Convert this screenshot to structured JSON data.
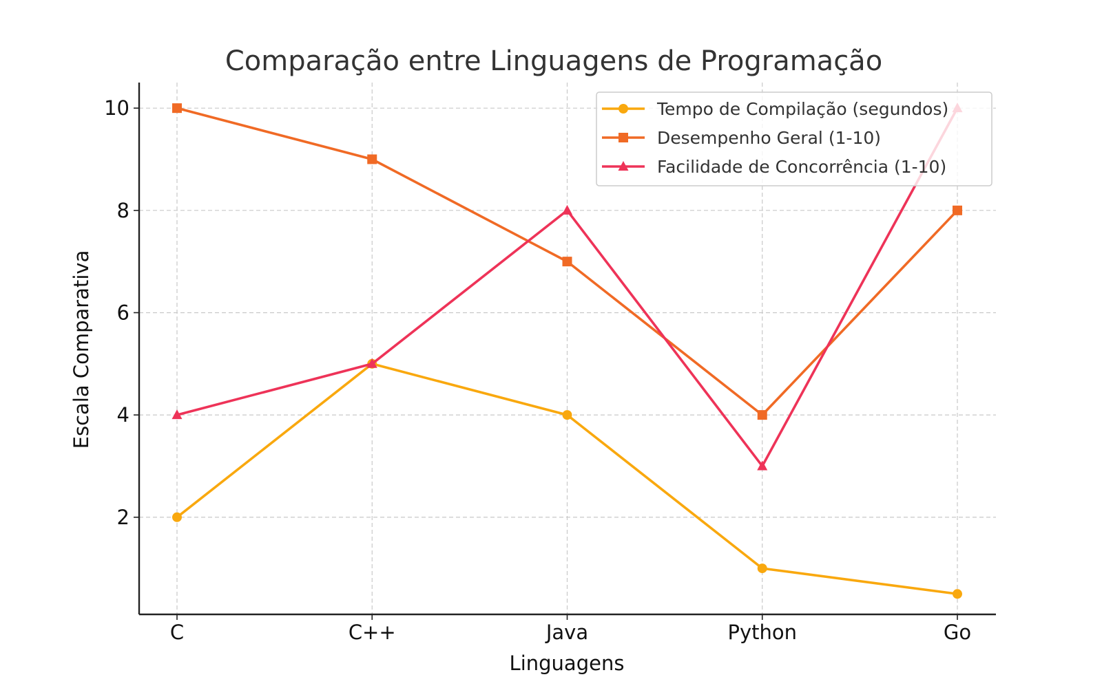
{
  "chart_data": {
    "type": "line",
    "title": "Comparação entre Linguagens de Programação",
    "xlabel": "Linguagens",
    "ylabel": "Escala Comparativa",
    "categories": [
      "C",
      "C++",
      "Java",
      "Python",
      "Go"
    ],
    "yticks": [
      2,
      4,
      6,
      8,
      10
    ],
    "ylim": [
      0.1,
      10.5
    ],
    "grid": true,
    "legend_position": "top-right",
    "series": [
      {
        "name": "Tempo de Compilação (segundos)",
        "values": [
          2,
          5,
          4,
          1,
          0.5
        ],
        "color": "#F9A80E",
        "marker": "circle"
      },
      {
        "name": "Desempenho Geral (1-10)",
        "values": [
          10,
          9,
          7,
          4,
          8
        ],
        "color": "#F06A25",
        "marker": "square"
      },
      {
        "name": "Facilidade de Concorrência (1-10)",
        "values": [
          4,
          5,
          8,
          3,
          10
        ],
        "color": "#EE3358",
        "marker": "triangle"
      }
    ]
  }
}
